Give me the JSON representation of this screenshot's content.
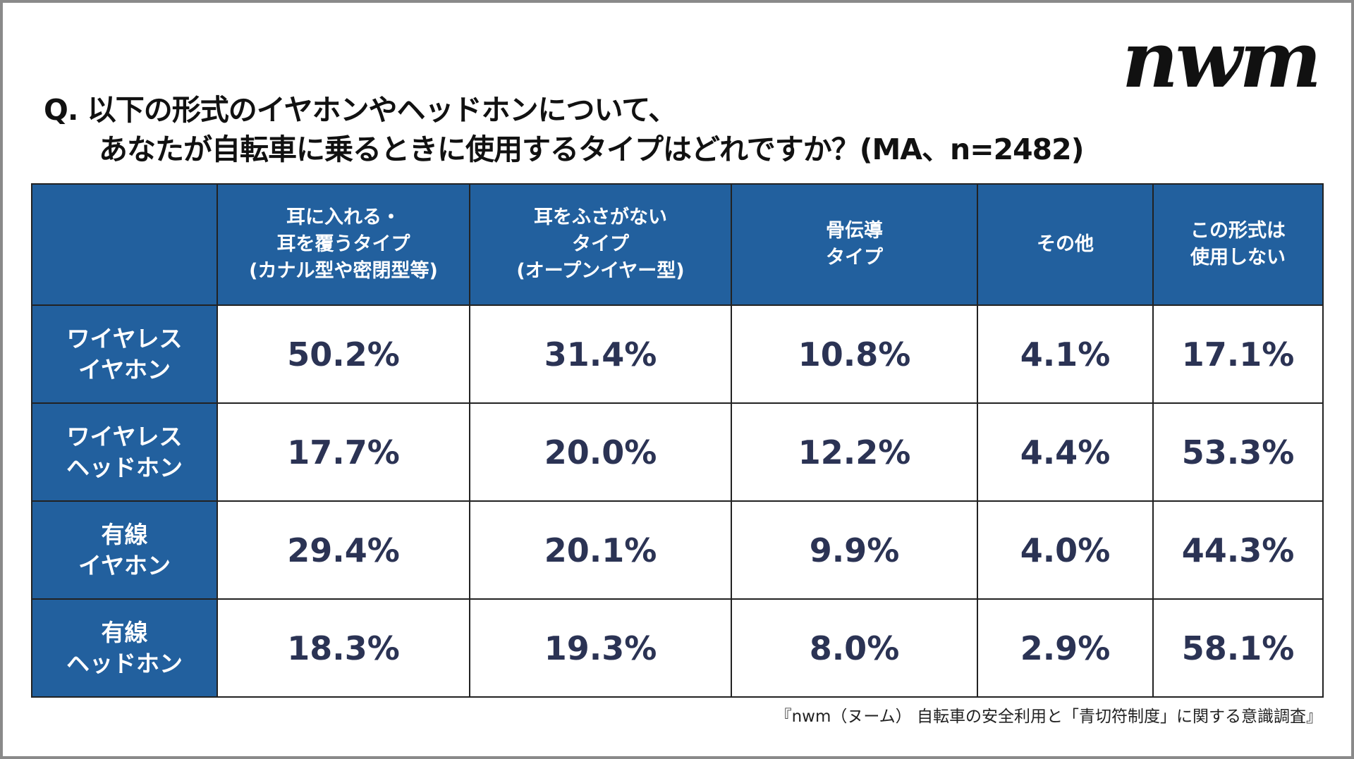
{
  "logo": "nwm",
  "title": {
    "line1": "Q. 以下の形式のイヤホンやヘッドホンについて、",
    "line2": "あなたが自転車に乗るときに使用するタイプはどれですか？(MA、n=2482)"
  },
  "table": {
    "columns": [
      "",
      "耳に入れる・\n耳を覆うタイプ\n(カナル型や密閉型等)",
      "耳をふさがない\nタイプ\n(オープンイヤー型)",
      "骨伝導\nタイプ",
      "その他",
      "この形式は\n使用しない"
    ],
    "rows": [
      {
        "label": "ワイヤレス\nイヤホン",
        "values": [
          "50.2%",
          "31.4%",
          "10.8%",
          "4.1%",
          "17.1%"
        ]
      },
      {
        "label": "ワイヤレス\nヘッドホン",
        "values": [
          "17.7%",
          "20.0%",
          "12.2%",
          "4.4%",
          "53.3%"
        ]
      },
      {
        "label": "有線\nイヤホン",
        "values": [
          "29.4%",
          "20.1%",
          "9.9%",
          "4.0%",
          "44.3%"
        ]
      },
      {
        "label": "有線\nヘッドホン",
        "values": [
          "18.3%",
          "19.3%",
          "8.0%",
          "2.9%",
          "58.1%"
        ]
      }
    ]
  },
  "source": "『nwm（ヌーム） 自転車の安全利用と「青切符制度」に関する意識調査』",
  "colors": {
    "header_bg": "#22609e",
    "value_text": "#2b3354"
  }
}
